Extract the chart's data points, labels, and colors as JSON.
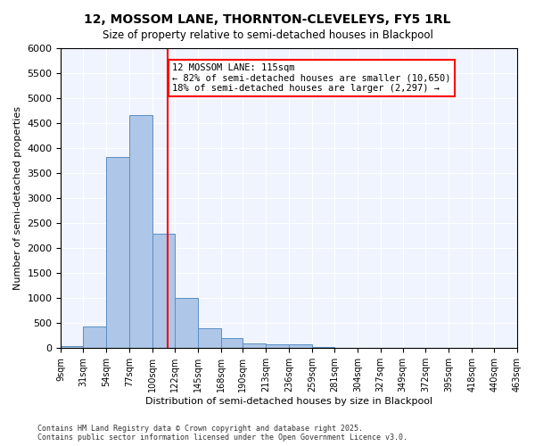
{
  "title": "12, MOSSOM LANE, THORNTON-CLEVELEYS, FY5 1RL",
  "subtitle": "Size of property relative to semi-detached houses in Blackpool",
  "xlabel": "Distribution of semi-detached houses by size in Blackpool",
  "ylabel": "Number of semi-detached properties",
  "footer": "Contains HM Land Registry data © Crown copyright and database right 2025.\nContains public sector information licensed under the Open Government Licence v3.0.",
  "property_label": "12 MOSSOM LANE: 115sqm",
  "pct_smaller": "82% of semi-detached houses are smaller (10,650)",
  "pct_larger": "18% of semi-detached houses are larger (2,297)",
  "property_size": 115,
  "bin_edges": [
    9,
    31,
    54,
    77,
    100,
    122,
    145,
    168,
    190,
    213,
    236,
    259,
    281,
    304,
    327,
    349,
    372,
    395,
    418,
    440,
    463
  ],
  "bin_labels": [
    "9sqm",
    "31sqm",
    "54sqm",
    "77sqm",
    "100sqm",
    "122sqm",
    "145sqm",
    "168sqm",
    "190sqm",
    "213sqm",
    "236sqm",
    "259sqm",
    "281sqm",
    "304sqm",
    "327sqm",
    "349sqm",
    "372sqm",
    "395sqm",
    "418sqm",
    "440sqm",
    "463sqm"
  ],
  "counts": [
    50,
    430,
    3820,
    4670,
    2290,
    1000,
    400,
    200,
    90,
    70,
    70,
    30,
    0,
    0,
    0,
    0,
    0,
    0,
    0,
    0
  ],
  "bar_color": "#aec6e8",
  "bar_edge_color": "#5a8fc2",
  "vline_color": "red",
  "annotation_box_color": "red",
  "background_color": "#f0f4ff",
  "ylim": [
    0,
    6000
  ],
  "yticks": [
    0,
    500,
    1000,
    1500,
    2000,
    2500,
    3000,
    3500,
    4000,
    4500,
    5000,
    5500,
    6000
  ]
}
